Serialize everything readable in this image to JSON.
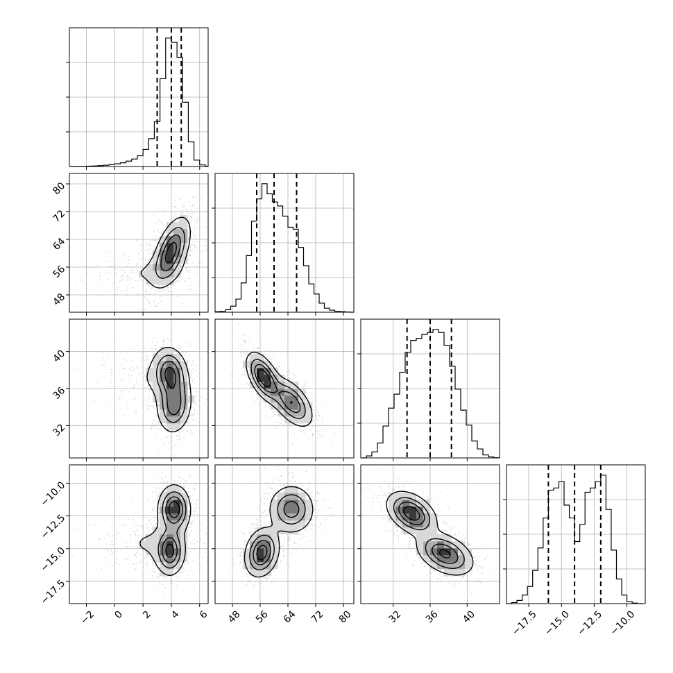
{
  "chart_data": {
    "type": "corner",
    "grid": true,
    "parameters": [
      {
        "index": 0,
        "range": [
          -3.2,
          6.6
        ],
        "ticks": [
          -2,
          0,
          2,
          4,
          6
        ],
        "tick_labels": [
          "−2",
          "0",
          "2",
          "4",
          "6"
        ],
        "quantiles": [
          3.0,
          4.0,
          4.7
        ]
      },
      {
        "index": 1,
        "range": [
          43,
          83
        ],
        "ticks": [
          48,
          56,
          64,
          72,
          80
        ],
        "tick_labels": [
          "48",
          "56",
          "64",
          "72",
          "80"
        ],
        "quantiles": [
          55.0,
          60.0,
          66.5
        ]
      },
      {
        "index": 2,
        "range": [
          28.5,
          43.5
        ],
        "ticks": [
          32,
          36,
          40
        ],
        "tick_labels": [
          "32",
          "36",
          "40"
        ],
        "quantiles": [
          33.5,
          36.0,
          38.3
        ]
      },
      {
        "index": 3,
        "range": [
          -19.2,
          -8.6
        ],
        "ticks": [
          -17.5,
          -15.0,
          -12.5,
          -10.0
        ],
        "tick_labels": [
          "−17.5",
          "−15.0",
          "−12.5",
          "−10.0"
        ],
        "quantiles": [
          -16.0,
          -14.0,
          -12.0
        ]
      }
    ],
    "histograms": [
      {
        "param": 0,
        "bin_edges": [
          -3.2,
          -2.8,
          -2.4,
          -2.0,
          -1.6,
          -1.2,
          -0.8,
          -0.4,
          0.0,
          0.4,
          0.8,
          1.2,
          1.6,
          2.0,
          2.4,
          2.8,
          3.2,
          3.6,
          4.0,
          4.4,
          4.8,
          5.2,
          5.6,
          6.0,
          6.4,
          6.6
        ],
        "counts": [
          0,
          1,
          2,
          3,
          5,
          8,
          12,
          18,
          25,
          35,
          50,
          70,
          100,
          160,
          260,
          420,
          820,
          1200,
          1160,
          1020,
          600,
          230,
          60,
          15,
          3
        ]
      },
      {
        "param": 1,
        "bin_edges": [
          43,
          44.5,
          46,
          47.5,
          49,
          50.5,
          52,
          53.5,
          55,
          56.5,
          58,
          59.5,
          61,
          62.5,
          64,
          65.5,
          67,
          68.5,
          70,
          71.5,
          73,
          74.5,
          76,
          77.5,
          79,
          80.5,
          82,
          83
        ],
        "counts": [
          5,
          10,
          25,
          60,
          130,
          290,
          560,
          900,
          1120,
          1270,
          1170,
          1090,
          1050,
          950,
          840,
          820,
          640,
          460,
          280,
          180,
          90,
          40,
          20,
          10,
          5,
          2,
          0
        ]
      },
      {
        "param": 2,
        "bin_edges": [
          28.5,
          29.1,
          29.7,
          30.3,
          30.9,
          31.5,
          32.1,
          32.7,
          33.3,
          33.9,
          34.5,
          35.1,
          35.7,
          36.3,
          36.9,
          37.5,
          38.1,
          38.7,
          39.3,
          39.9,
          40.5,
          41.1,
          41.7,
          42.3,
          42.9,
          43.5
        ],
        "counts": [
          0,
          20,
          60,
          150,
          320,
          500,
          640,
          860,
          1060,
          1180,
          1200,
          1240,
          1260,
          1290,
          1260,
          1130,
          920,
          690,
          480,
          330,
          170,
          90,
          30,
          10,
          2
        ]
      },
      {
        "param": 3,
        "bin_edges": [
          -19.2,
          -18.8,
          -18.4,
          -18.0,
          -17.6,
          -17.2,
          -16.8,
          -16.4,
          -16.0,
          -15.6,
          -15.2,
          -14.8,
          -14.4,
          -14.0,
          -13.6,
          -13.2,
          -12.8,
          -12.4,
          -12.0,
          -11.6,
          -11.2,
          -10.8,
          -10.4,
          -10.0,
          -9.6,
          -9.2,
          -8.8
        ],
        "counts": [
          0,
          10,
          30,
          80,
          160,
          310,
          520,
          800,
          1060,
          1080,
          1140,
          920,
          800,
          580,
          740,
          1040,
          1080,
          1140,
          1200,
          880,
          500,
          230,
          80,
          20,
          5,
          0
        ]
      }
    ],
    "pairs": [
      {
        "x_param": 0,
        "y_param": 1,
        "components": [
          {
            "mean": [
              4.0,
              60.5
            ],
            "sd": [
              0.65,
              4.8
            ],
            "rho": 0.55,
            "weight": 0.8
          },
          {
            "mean": [
              2.4,
              54.5
            ],
            "sd": [
              1.8,
              3.0
            ],
            "rho": 0.2,
            "weight": 0.2
          }
        ]
      },
      {
        "x_param": 0,
        "y_param": 2,
        "components": [
          {
            "mean": [
              3.9,
              37.6
            ],
            "sd": [
              0.6,
              1.4
            ],
            "rho": -0.1,
            "weight": 0.45
          },
          {
            "mean": [
              4.2,
              34.2
            ],
            "sd": [
              0.6,
              1.5
            ],
            "rho": 0.1,
            "weight": 0.4
          },
          {
            "mean": [
              2.2,
              37.0
            ],
            "sd": [
              1.6,
              1.6
            ],
            "rho": 0.0,
            "weight": 0.15
          }
        ]
      },
      {
        "x_param": 1,
        "y_param": 2,
        "components": [
          {
            "mean": [
              57.0,
              37.2
            ],
            "sd": [
              2.4,
              1.3
            ],
            "rho": -0.55,
            "weight": 0.5
          },
          {
            "mean": [
              65.0,
              34.5
            ],
            "sd": [
              3.0,
              1.3
            ],
            "rho": -0.55,
            "weight": 0.5
          }
        ]
      },
      {
        "x_param": 0,
        "y_param": 3,
        "components": [
          {
            "mean": [
              4.2,
              -12.0
            ],
            "sd": [
              0.55,
              0.9
            ],
            "rho": 0.0,
            "weight": 0.45
          },
          {
            "mean": [
              3.9,
              -15.2
            ],
            "sd": [
              0.5,
              0.9
            ],
            "rho": 0.0,
            "weight": 0.35
          },
          {
            "mean": [
              2.5,
              -14.6
            ],
            "sd": [
              1.6,
              1.1
            ],
            "rho": 0.0,
            "weight": 0.2
          }
        ]
      },
      {
        "x_param": 1,
        "y_param": 3,
        "components": [
          {
            "mean": [
              65.0,
              -12.0
            ],
            "sd": [
              3.2,
              0.9
            ],
            "rho": 0.0,
            "weight": 0.5
          },
          {
            "mean": [
              56.5,
              -15.3
            ],
            "sd": [
              2.4,
              0.9
            ],
            "rho": 0.2,
            "weight": 0.5
          }
        ]
      },
      {
        "x_param": 2,
        "y_param": 3,
        "components": [
          {
            "mean": [
              34.0,
              -12.3
            ],
            "sd": [
              1.3,
              0.8
            ],
            "rho": -0.4,
            "weight": 0.5
          },
          {
            "mean": [
              37.6,
              -15.4
            ],
            "sd": [
              1.5,
              0.8
            ],
            "rho": -0.4,
            "weight": 0.5
          }
        ]
      }
    ],
    "contour_levels": [
      0.12,
      0.35,
      0.6,
      0.85
    ]
  }
}
